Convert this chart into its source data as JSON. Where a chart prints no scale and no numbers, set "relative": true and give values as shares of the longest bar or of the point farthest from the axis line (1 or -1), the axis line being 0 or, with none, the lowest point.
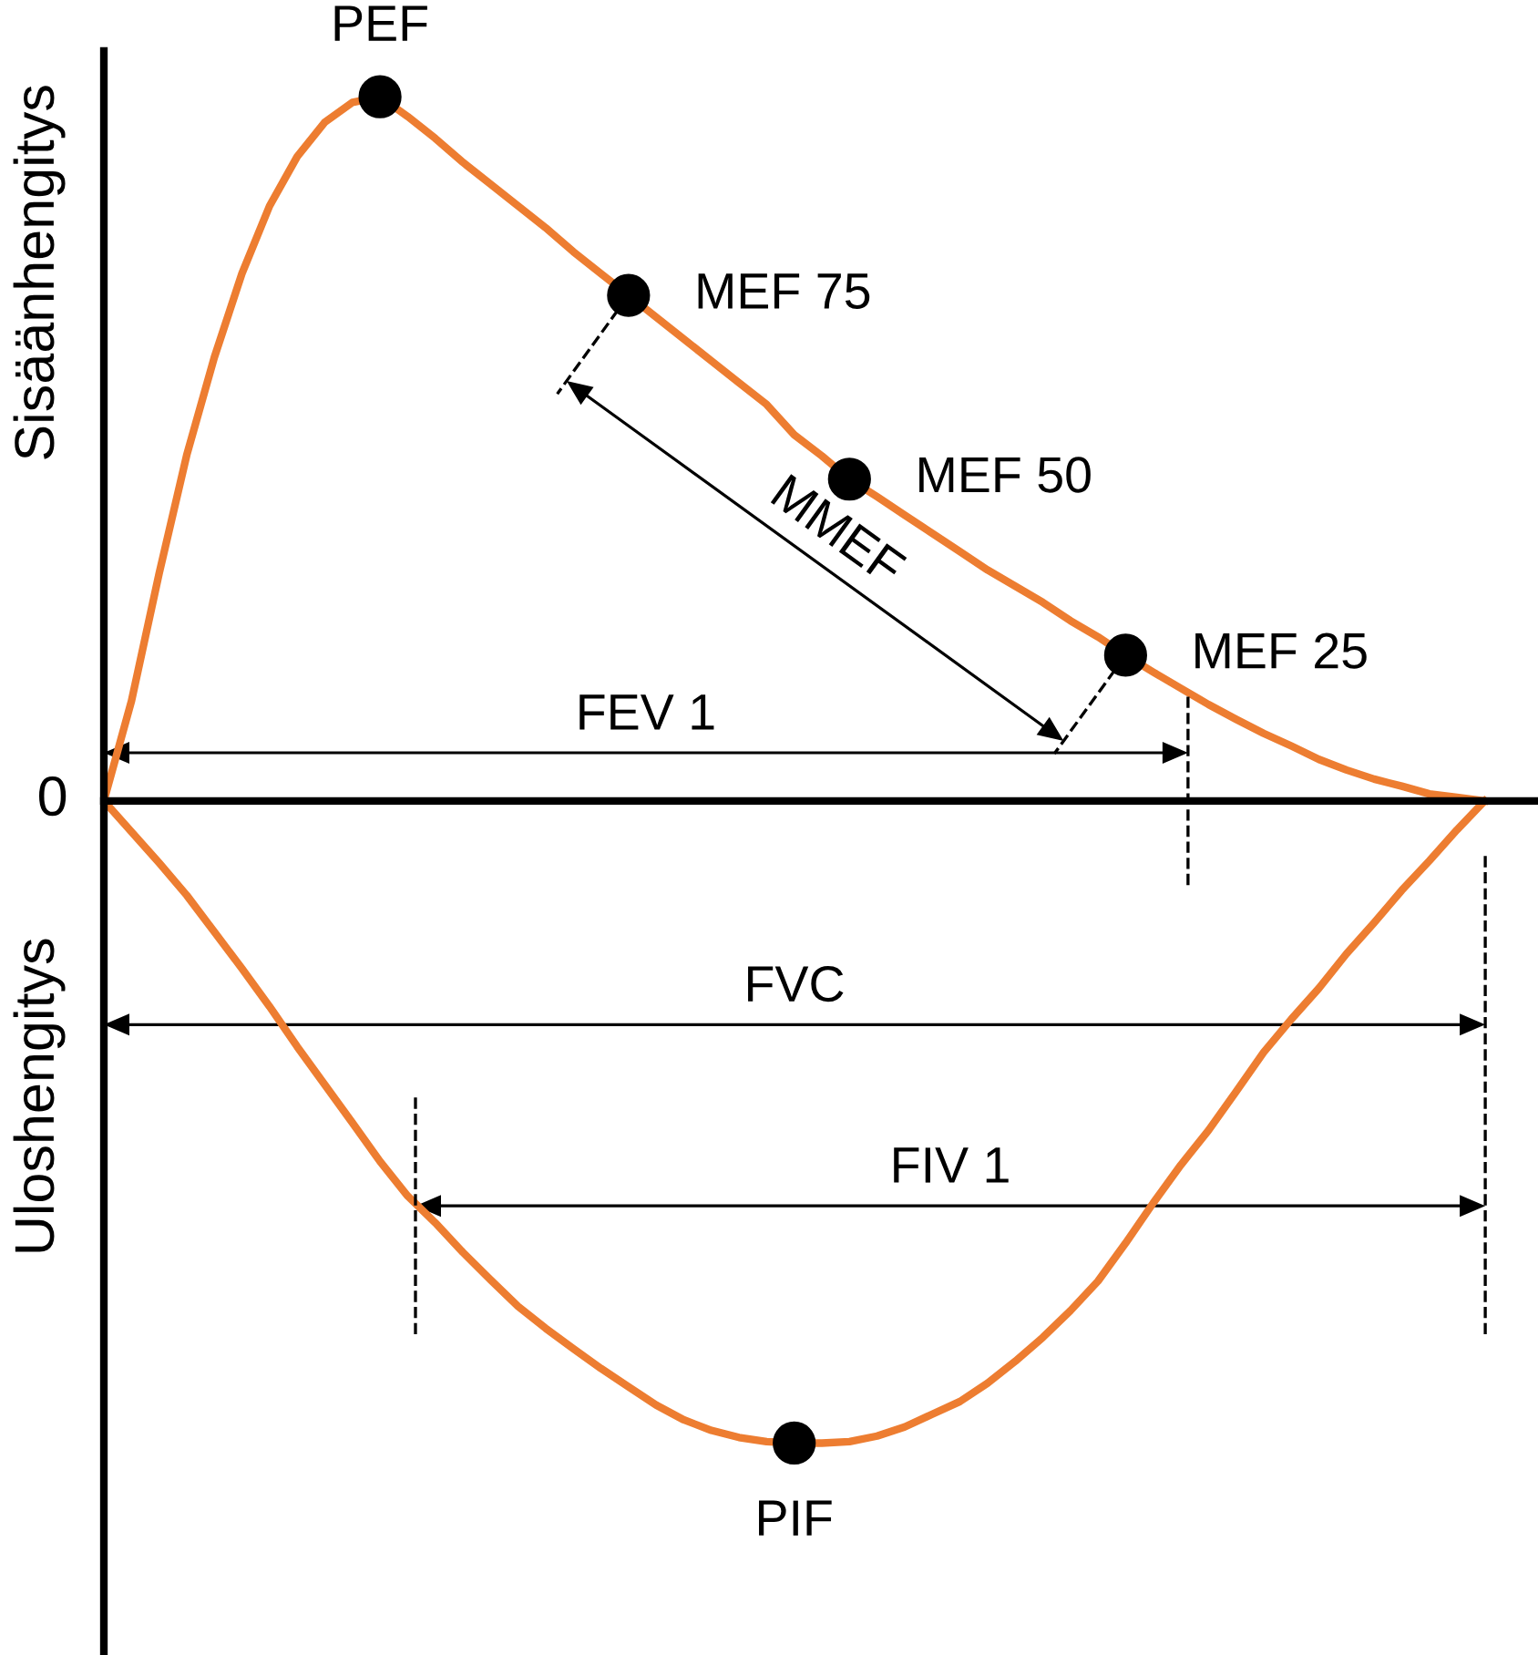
{
  "chart_data": {
    "type": "line",
    "relative": true,
    "categories": [
      null,
      null,
      null,
      null,
      null,
      null,
      null,
      null,
      null,
      null,
      null,
      null,
      null,
      null,
      null,
      null,
      null,
      null,
      null,
      null,
      null,
      null,
      null,
      null,
      null,
      null,
      null,
      null,
      null,
      null,
      null,
      null,
      null,
      null,
      null,
      null,
      null,
      null,
      null,
      null,
      null,
      null,
      null,
      null,
      null,
      null,
      null,
      null,
      null,
      null,
      null
    ],
    "series": [
      {
        "values": [
          0,
          0.142,
          0.323,
          0.491,
          0.63,
          0.749,
          0.845,
          0.915,
          0.964,
          0.992,
          1,
          0.972,
          0.941,
          0.907,
          0.876,
          0.845,
          0.814,
          0.78,
          0.749,
          0.718,
          0.687,
          0.656,
          0.625,
          0.594,
          0.563,
          0.52,
          0.49,
          0.457,
          0.432,
          0.406,
          0.38,
          0.354,
          0.328,
          0.305,
          0.282,
          0.256,
          0.233,
          0.207,
          0.183,
          0.16,
          0.137,
          0.116,
          0.096,
          0.078,
          0.059,
          0.044,
          0.031,
          0.021,
          0.01,
          0.005,
          0
        ],
        "color": "#ed7d31"
      },
      {
        "values": [
          0,
          -0.044,
          -0.088,
          -0.134,
          -0.186,
          -0.238,
          -0.292,
          -0.349,
          -0.403,
          -0.457,
          -0.512,
          -0.561,
          -0.599,
          -0.641,
          -0.68,
          -0.718,
          -0.749,
          -0.778,
          -0.806,
          -0.832,
          -0.858,
          -0.879,
          -0.894,
          -0.904,
          -0.91,
          -0.912,
          -0.912,
          -0.91,
          -0.902,
          -0.889,
          -0.871,
          -0.853,
          -0.827,
          -0.796,
          -0.762,
          -0.724,
          -0.682,
          -0.628,
          -0.571,
          -0.517,
          -0.468,
          -0.413,
          -0.357,
          -0.31,
          -0.266,
          -0.217,
          -0.173,
          -0.127,
          -0.085,
          -0.041,
          0
        ],
        "color": "#ed7d31"
      }
    ],
    "annotations": [
      "Sisäänhengitys",
      "Uloshengitys",
      "MMEF",
      "0",
      "FEV 1",
      "FVC",
      "FIV 1",
      "PEF",
      "MEF 75",
      "MEF 50",
      "MEF 25",
      "PIF"
    ]
  }
}
